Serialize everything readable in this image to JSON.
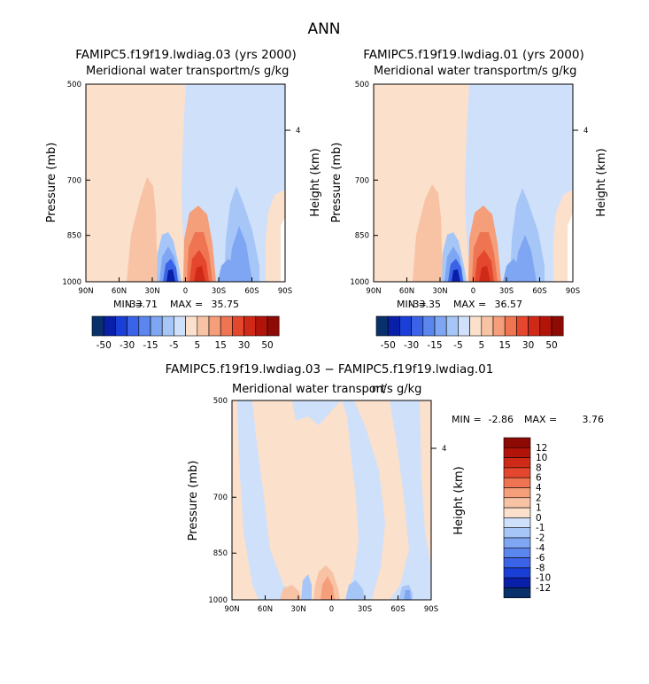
{
  "figure": {
    "season": "ANN",
    "contour_colors": [
      "#08306b",
      "#0a1fa8",
      "#1a3fd6",
      "#3b63e8",
      "#5a86ee",
      "#7ea6f2",
      "#a6c6f7",
      "#cfe0fb",
      "#fbe0cc",
      "#f8c3a4",
      "#f59e7a",
      "#ee7452",
      "#e4472d",
      "#cf2a17",
      "#b3140a",
      "#8e0b05"
    ]
  },
  "chart_data": [
    {
      "type": "contour",
      "title": "FAMIPC5.f19f19.lwdiag.03 (yrs 2000)",
      "subtitle_left": "Meridional water transport",
      "subtitle_right": "m/s g/kg",
      "ylabel": "Pressure (mb)",
      "y2label": "Height (km)",
      "x_ticks": [
        "90N",
        "60N",
        "30N",
        "0",
        "30S",
        "60S",
        "90S"
      ],
      "y_ticks": [
        "500",
        "700",
        "850",
        "1000"
      ],
      "y_range": [
        500,
        1000
      ],
      "y2_ticks": [
        "4"
      ],
      "min_label": "MIN =",
      "min": "-33.71",
      "max_label": "MAX =",
      "max": "35.75",
      "colorbar_labels": [
        "-50",
        "-30",
        "-15",
        "-5",
        "5",
        "15",
        "30",
        "50"
      ],
      "colorbar_orientation": "horizontal"
    },
    {
      "type": "contour",
      "title": "FAMIPC5.f19f19.lwdiag.01 (yrs 2000)",
      "subtitle_left": "Meridional water transport",
      "subtitle_right": "m/s g/kg",
      "ylabel": "Pressure (mb)",
      "y2label": "Height (km)",
      "x_ticks": [
        "90N",
        "60N",
        "30N",
        "0",
        "30S",
        "60S",
        "90S"
      ],
      "y_ticks": [
        "500",
        "700",
        "850",
        "1000"
      ],
      "y_range": [
        500,
        1000
      ],
      "y2_ticks": [
        "4"
      ],
      "min_label": "MIN =",
      "min": "-33.35",
      "max_label": "MAX =",
      "max": "36.57",
      "colorbar_labels": [
        "-50",
        "-30",
        "-15",
        "-5",
        "5",
        "15",
        "30",
        "50"
      ],
      "colorbar_orientation": "horizontal"
    },
    {
      "type": "contour",
      "title": "FAMIPC5.f19f19.lwdiag.03 − FAMIPC5.f19f19.lwdiag.01",
      "subtitle_left": "Meridional water transport",
      "subtitle_right": "m/s g/kg",
      "ylabel": "Pressure (mb)",
      "y2label": "Height (km)",
      "x_ticks": [
        "90N",
        "60N",
        "30N",
        "0",
        "30S",
        "60S",
        "90S"
      ],
      "y_ticks": [
        "500",
        "700",
        "850",
        "1000"
      ],
      "y_range": [
        500,
        1000
      ],
      "y2_ticks": [
        "4"
      ],
      "min_label": "MIN =",
      "min": "-2.86",
      "max_label": "MAX =",
      "max": "3.76",
      "colorbar_labels": [
        "12",
        "10",
        "8",
        "6",
        "4",
        "2",
        "1",
        "0",
        "-1",
        "-2",
        "-4",
        "-6",
        "-8",
        "-10",
        "-12"
      ],
      "colorbar_orientation": "vertical"
    }
  ]
}
